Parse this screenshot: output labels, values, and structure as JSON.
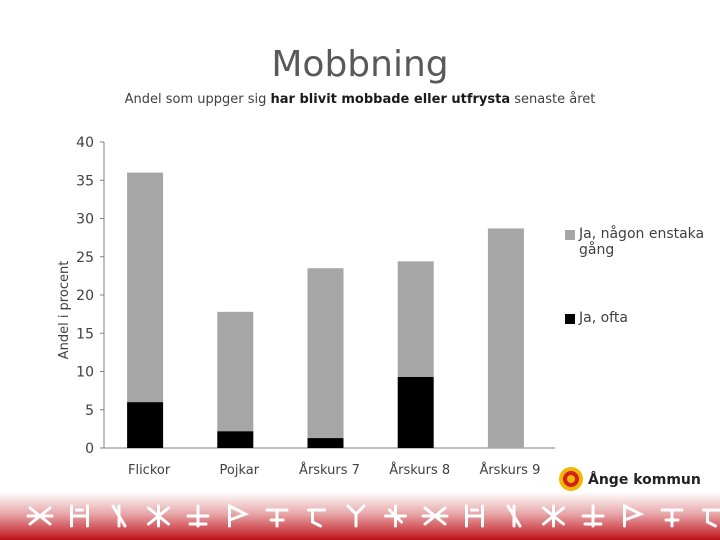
{
  "page": {
    "title": "Mobbning",
    "subtitle_pre": "Andel som uppger sig ",
    "subtitle_em": "har blivit mobbade eller utfrysta",
    "subtitle_post": " senaste året",
    "logo_text": "Ånge kommun"
  },
  "colors": {
    "series_often": "#000000",
    "series_once": "#a6a6a6",
    "axis": "#808080",
    "footer_red": "#c0121b"
  },
  "chart_data": {
    "type": "bar",
    "stacked": true,
    "title": "Mobbning",
    "subtitle": "Andel som uppger sig har blivit mobbade eller utfrysta senaste året",
    "xlabel": "",
    "ylabel": "Andel i procent",
    "ylim": [
      0,
      40
    ],
    "yticks": [
      0,
      5,
      10,
      15,
      20,
      25,
      30,
      35,
      40
    ],
    "grid": false,
    "legend_position": "right",
    "categories": [
      "Flickor",
      "Pojkar",
      "Årskurs 7",
      "Årskurs 8",
      "Årskurs 9"
    ],
    "series": [
      {
        "name": "Ja, ofta",
        "color": "#000000",
        "values": [
          6,
          2.2,
          1.3,
          9.3,
          0
        ]
      },
      {
        "name": "Ja, någon enstaka gång",
        "color": "#a6a6a6",
        "values": [
          30,
          15.6,
          22.2,
          15.1,
          28.7
        ]
      }
    ]
  }
}
